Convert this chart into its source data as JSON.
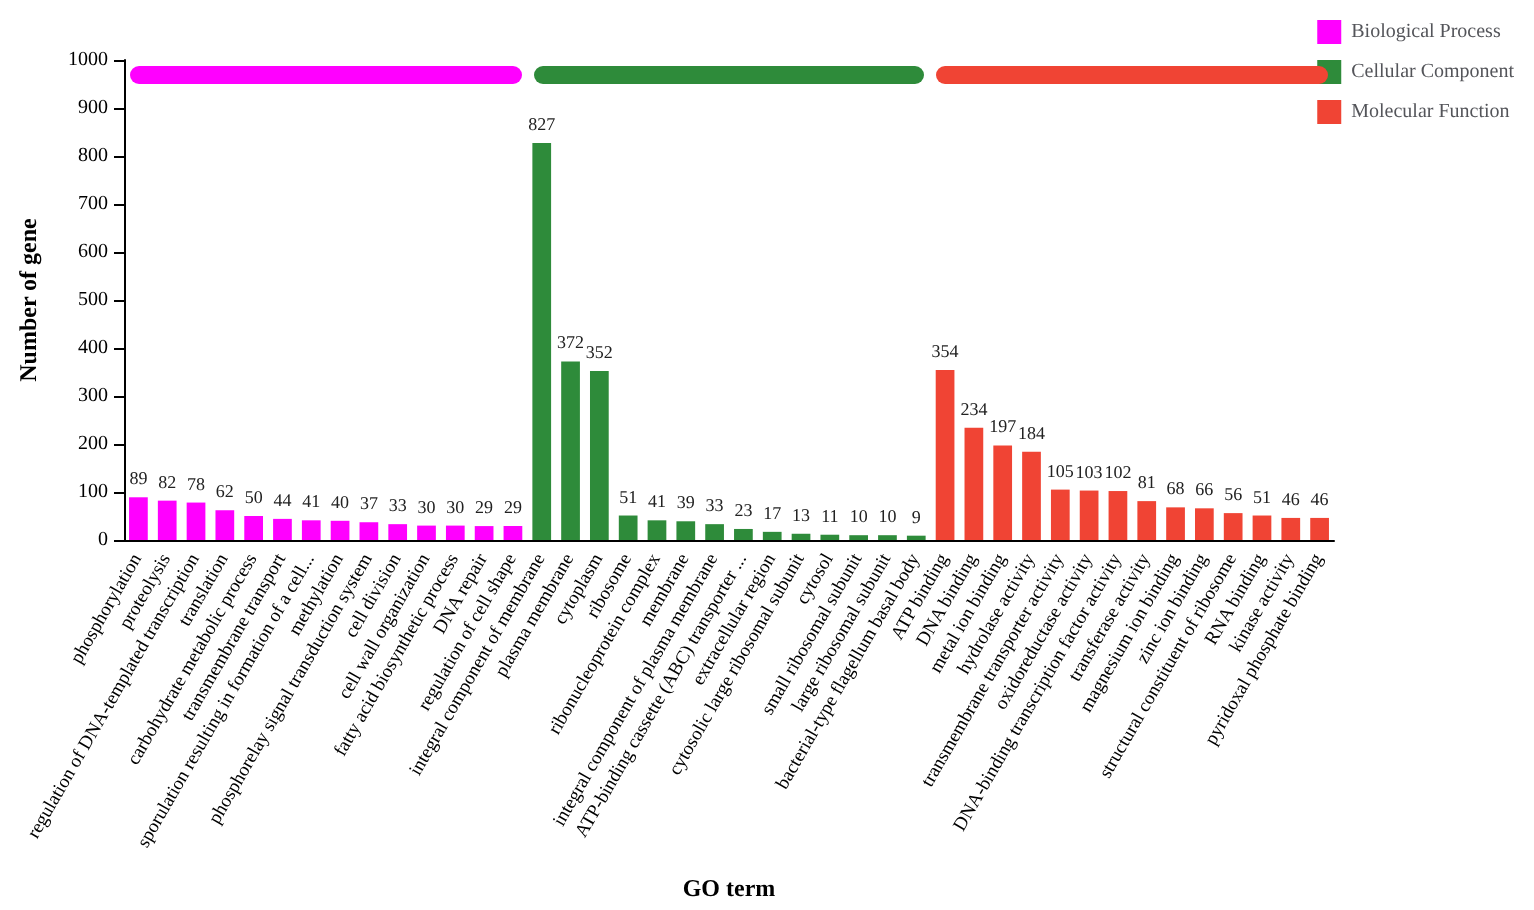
{
  "chart_data": {
    "type": "bar",
    "xlabel": "GO term",
    "ylabel": "Number of gene",
    "categories": [
      "phosphorylation",
      "proteolysis",
      "regulation of DNA-templated transcription",
      "translation",
      "carbohydrate metabolic process",
      "transmembrane transport",
      "sporulation resulting in formation of a cell...",
      "methylation",
      "phosphorelay signal transduction system",
      "cell division",
      "cell wall organization",
      "fatty acid biosynthetic process",
      "DNA repair",
      "regulation of cell shape",
      "integral component of membrane",
      "plasma membrane",
      "cytoplasm",
      "ribosome",
      "ribonucleoprotein complex",
      "membrane",
      "integral component of plasma membrane",
      "ATP-binding cassette (ABC) transporter ...",
      "extracellular region",
      "cytosolic large ribosomal subunit",
      "cytosol",
      "small ribosomal subunit",
      "large ribosomal subunit",
      "bacterial-type flagellum basal body",
      "ATP binding",
      "DNA binding",
      "metal ion binding",
      "hydrolase activity",
      "transmembrane transporter activity",
      "oxidoreductase activity",
      "DNA-binding transcription factor activity",
      "transferase activity",
      "magnesium ion binding",
      "zinc ion binding",
      "structural constituent of ribosome",
      "RNA binding",
      "kinase activity",
      "pyridoxal phosphate binding"
    ],
    "series": [
      {
        "name": "Biological Process",
        "color": "#ff00ff",
        "values": [
          89,
          82,
          78,
          62,
          50,
          44,
          41,
          40,
          37,
          33,
          30,
          30,
          29,
          29,
          null,
          null,
          null,
          null,
          null,
          null,
          null,
          null,
          null,
          null,
          null,
          null,
          null,
          null,
          null,
          null,
          null,
          null,
          null,
          null,
          null,
          null,
          null,
          null,
          null,
          null,
          null,
          null
        ]
      },
      {
        "name": "Cellular Component",
        "color": "#2e8b3a",
        "values": [
          null,
          null,
          null,
          null,
          null,
          null,
          null,
          null,
          null,
          null,
          null,
          null,
          null,
          null,
          827,
          372,
          352,
          51,
          41,
          39,
          33,
          23,
          17,
          13,
          11,
          10,
          10,
          9,
          null,
          null,
          null,
          null,
          null,
          null,
          null,
          null,
          null,
          null,
          null,
          null,
          null,
          null
        ]
      },
      {
        "name": "Molecular Function",
        "color": "#f04434",
        "values": [
          null,
          null,
          null,
          null,
          null,
          null,
          null,
          null,
          null,
          null,
          null,
          null,
          null,
          null,
          null,
          null,
          null,
          null,
          null,
          null,
          null,
          null,
          null,
          null,
          null,
          null,
          null,
          null,
          354,
          234,
          197,
          184,
          105,
          103,
          102,
          81,
          68,
          66,
          56,
          51,
          46,
          46
        ]
      }
    ],
    "ylim": [
      0,
      1000
    ],
    "yticks": [
      0,
      100,
      200,
      300,
      400,
      500,
      600,
      700,
      800,
      900,
      1000
    ],
    "grid": false,
    "legend": "top right",
    "data_labels": true
  }
}
